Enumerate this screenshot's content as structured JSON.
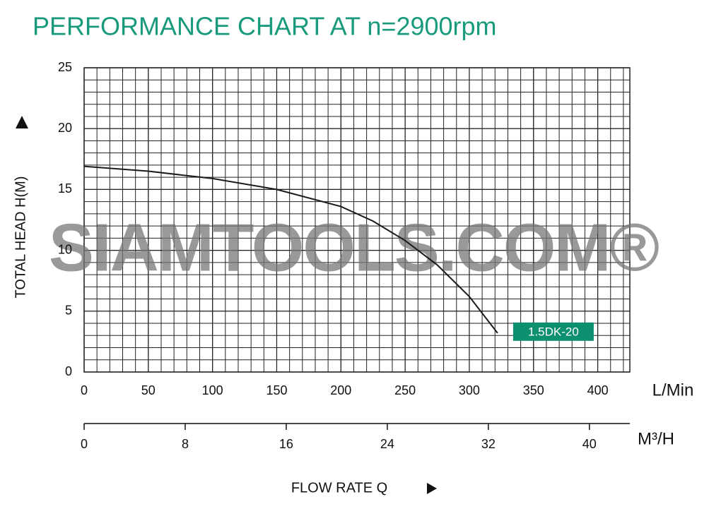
{
  "chart_data": {
    "type": "line",
    "title": "PERFORMANCE CHART AT n=2900rpm",
    "watermark": "SIAMTOOLS.COM®",
    "ylabel": "TOTAL HEAD H(M)",
    "xlabel": "FLOW RATE Q",
    "xunit": "L/Min",
    "x2unit": "M³/H",
    "x": [
      0,
      50,
      100,
      150,
      200,
      225,
      250,
      275,
      300,
      322
    ],
    "series": [
      {
        "name": "1.5DK-20",
        "color": "#1a1a1a",
        "label_color": "#0e8f6f",
        "values": [
          16.9,
          16.5,
          15.9,
          15.0,
          13.6,
          12.4,
          10.8,
          8.8,
          6.2,
          3.2
        ]
      }
    ],
    "xlim": [
      0,
      425
    ],
    "xticks": [
      0,
      50,
      100,
      150,
      200,
      250,
      300,
      350,
      400
    ],
    "x2lim": [
      0,
      43.2
    ],
    "x2ticks": [
      0,
      8,
      16,
      24,
      32,
      40
    ],
    "ylim": [
      0,
      25
    ],
    "yticks": [
      0,
      5,
      10,
      15,
      20,
      25
    ],
    "grid": true
  }
}
